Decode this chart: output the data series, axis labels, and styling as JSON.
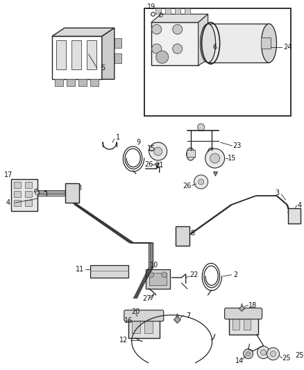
{
  "background_color": "#ffffff",
  "fig_width": 4.38,
  "fig_height": 5.33,
  "dpi": 100,
  "line_color": "#222222",
  "label_color": "#111111",
  "label_fontsize": 7.0
}
